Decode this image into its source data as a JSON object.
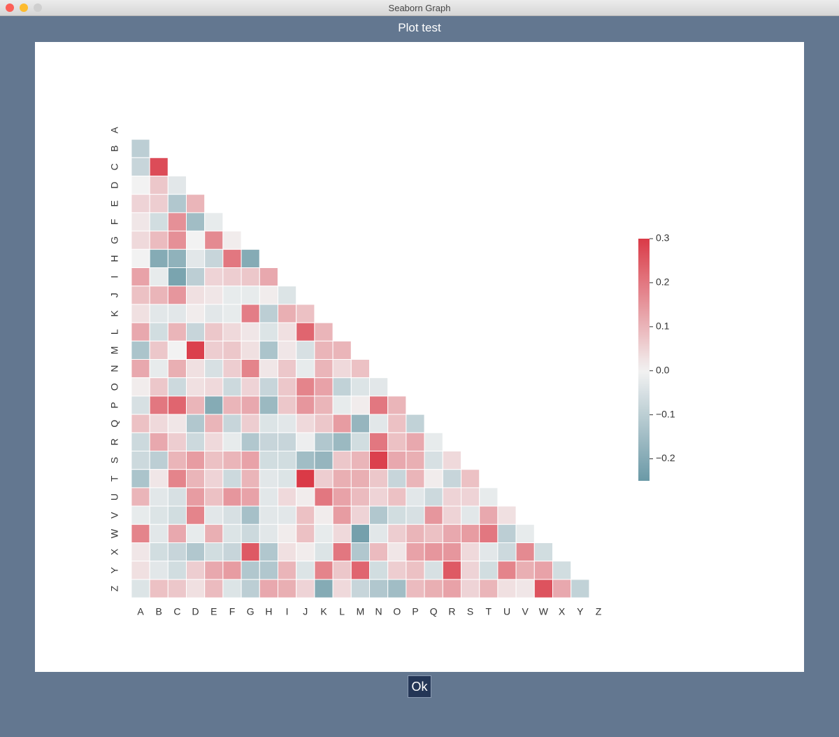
{
  "window": {
    "title": "Seaborn Graph"
  },
  "header": {
    "title": "Plot test"
  },
  "button": {
    "label": "Ok"
  },
  "chart_data": {
    "type": "heatmap",
    "categories": [
      "A",
      "B",
      "C",
      "D",
      "E",
      "F",
      "G",
      "H",
      "I",
      "J",
      "K",
      "L",
      "M",
      "N",
      "O",
      "P",
      "Q",
      "R",
      "S",
      "T",
      "U",
      "V",
      "W",
      "X",
      "Y",
      "Z"
    ],
    "values": [
      [
        null,
        null,
        null,
        null,
        null,
        null,
        null,
        null,
        null,
        null,
        null,
        null,
        null,
        null,
        null,
        null,
        null,
        null,
        null,
        null,
        null,
        null,
        null,
        null,
        null,
        null
      ],
      [
        -0.1,
        null,
        null,
        null,
        null,
        null,
        null,
        null,
        null,
        null,
        null,
        null,
        null,
        null,
        null,
        null,
        null,
        null,
        null,
        null,
        null,
        null,
        null,
        null,
        null,
        null
      ],
      [
        -0.08,
        0.27,
        null,
        null,
        null,
        null,
        null,
        null,
        null,
        null,
        null,
        null,
        null,
        null,
        null,
        null,
        null,
        null,
        null,
        null,
        null,
        null,
        null,
        null,
        null,
        null
      ],
      [
        0.0,
        0.07,
        -0.03,
        null,
        null,
        null,
        null,
        null,
        null,
        null,
        null,
        null,
        null,
        null,
        null,
        null,
        null,
        null,
        null,
        null,
        null,
        null,
        null,
        null,
        null,
        null
      ],
      [
        0.05,
        0.06,
        -0.12,
        0.1,
        null,
        null,
        null,
        null,
        null,
        null,
        null,
        null,
        null,
        null,
        null,
        null,
        null,
        null,
        null,
        null,
        null,
        null,
        null,
        null,
        null,
        null
      ],
      [
        0.02,
        -0.06,
        0.16,
        -0.15,
        -0.02,
        null,
        null,
        null,
        null,
        null,
        null,
        null,
        null,
        null,
        null,
        null,
        null,
        null,
        null,
        null,
        null,
        null,
        null,
        null,
        null,
        null
      ],
      [
        0.04,
        0.09,
        0.16,
        0.0,
        0.17,
        0.01,
        null,
        null,
        null,
        null,
        null,
        null,
        null,
        null,
        null,
        null,
        null,
        null,
        null,
        null,
        null,
        null,
        null,
        null,
        null,
        null
      ],
      [
        0.0,
        -0.2,
        -0.18,
        -0.03,
        -0.08,
        0.2,
        -0.2,
        null,
        null,
        null,
        null,
        null,
        null,
        null,
        null,
        null,
        null,
        null,
        null,
        null,
        null,
        null,
        null,
        null,
        null,
        null
      ],
      [
        0.13,
        -0.02,
        -0.22,
        -0.1,
        0.05,
        0.06,
        0.07,
        0.12,
        null,
        null,
        null,
        null,
        null,
        null,
        null,
        null,
        null,
        null,
        null,
        null,
        null,
        null,
        null,
        null,
        null,
        null
      ],
      [
        0.08,
        0.1,
        0.15,
        0.03,
        0.02,
        -0.02,
        -0.02,
        0.01,
        -0.04,
        null,
        null,
        null,
        null,
        null,
        null,
        null,
        null,
        null,
        null,
        null,
        null,
        null,
        null,
        null,
        null,
        null
      ],
      [
        0.03,
        -0.03,
        -0.03,
        0.01,
        -0.03,
        -0.02,
        0.19,
        -0.1,
        0.11,
        0.08,
        null,
        null,
        null,
        null,
        null,
        null,
        null,
        null,
        null,
        null,
        null,
        null,
        null,
        null,
        null,
        null
      ],
      [
        0.12,
        -0.06,
        0.1,
        -0.08,
        0.07,
        0.04,
        0.02,
        -0.04,
        0.03,
        0.23,
        0.1,
        null,
        null,
        null,
        null,
        null,
        null,
        null,
        null,
        null,
        null,
        null,
        null,
        null,
        null,
        null
      ],
      [
        -0.13,
        0.07,
        0.0,
        0.29,
        0.06,
        0.07,
        0.03,
        -0.13,
        0.02,
        -0.05,
        0.1,
        0.1,
        null,
        null,
        null,
        null,
        null,
        null,
        null,
        null,
        null,
        null,
        null,
        null,
        null,
        null
      ],
      [
        0.12,
        -0.02,
        0.11,
        0.03,
        -0.05,
        0.06,
        0.18,
        0.02,
        0.07,
        -0.02,
        0.1,
        0.04,
        0.08,
        null,
        null,
        null,
        null,
        null,
        null,
        null,
        null,
        null,
        null,
        null,
        null,
        null
      ],
      [
        0.01,
        0.07,
        -0.07,
        0.03,
        0.04,
        -0.07,
        0.05,
        -0.08,
        0.07,
        0.18,
        0.13,
        -0.09,
        -0.04,
        -0.03,
        null,
        null,
        null,
        null,
        null,
        null,
        null,
        null,
        null,
        null,
        null,
        null
      ],
      [
        -0.05,
        0.2,
        0.23,
        0.1,
        -0.2,
        0.1,
        0.12,
        -0.16,
        0.07,
        0.15,
        0.1,
        -0.02,
        0.01,
        0.2,
        0.1,
        null,
        null,
        null,
        null,
        null,
        null,
        null,
        null,
        null,
        null,
        null
      ],
      [
        0.08,
        0.04,
        0.02,
        -0.12,
        0.1,
        -0.08,
        0.06,
        -0.04,
        -0.03,
        0.04,
        0.07,
        0.14,
        -0.17,
        -0.03,
        0.08,
        -0.09,
        null,
        null,
        null,
        null,
        null,
        null,
        null,
        null,
        null,
        null
      ],
      [
        -0.07,
        0.12,
        0.06,
        -0.07,
        0.04,
        -0.02,
        -0.12,
        -0.08,
        -0.08,
        -0.01,
        -0.12,
        -0.16,
        -0.06,
        0.2,
        0.08,
        0.12,
        -0.02,
        null,
        null,
        null,
        null,
        null,
        null,
        null,
        null,
        null
      ],
      [
        -0.07,
        -0.1,
        0.1,
        0.14,
        0.08,
        0.1,
        0.13,
        -0.06,
        -0.06,
        -0.15,
        -0.17,
        0.07,
        0.1,
        0.29,
        0.12,
        0.11,
        -0.05,
        0.04,
        null,
        null,
        null,
        null,
        null,
        null,
        null,
        null
      ],
      [
        -0.13,
        0.02,
        0.18,
        0.1,
        0.05,
        -0.07,
        0.1,
        -0.03,
        -0.04,
        0.3,
        0.06,
        0.11,
        0.11,
        0.07,
        -0.08,
        0.1,
        0.01,
        -0.08,
        0.08,
        null,
        null,
        null,
        null,
        null,
        null,
        null
      ],
      [
        0.1,
        -0.03,
        -0.05,
        0.14,
        0.08,
        0.15,
        0.13,
        -0.03,
        0.04,
        0.01,
        0.2,
        0.13,
        0.09,
        0.05,
        0.08,
        -0.03,
        -0.07,
        0.05,
        0.05,
        -0.02,
        null,
        null,
        null,
        null,
        null,
        null
      ],
      [
        -0.02,
        -0.04,
        -0.06,
        0.18,
        -0.03,
        -0.05,
        -0.14,
        -0.03,
        -0.03,
        0.08,
        0.01,
        0.14,
        0.05,
        -0.12,
        -0.06,
        -0.05,
        0.15,
        0.05,
        -0.03,
        0.12,
        0.03,
        null,
        null,
        null,
        null,
        null
      ],
      [
        0.18,
        -0.03,
        0.12,
        -0.02,
        0.11,
        -0.04,
        -0.07,
        -0.03,
        0.01,
        0.08,
        -0.02,
        0.04,
        -0.23,
        -0.03,
        0.06,
        0.1,
        0.08,
        0.12,
        0.14,
        0.2,
        -0.1,
        -0.02,
        null,
        null,
        null,
        null
      ],
      [
        0.02,
        -0.06,
        -0.08,
        -0.12,
        -0.06,
        -0.08,
        0.25,
        -0.12,
        0.03,
        0.01,
        -0.04,
        0.2,
        -0.12,
        0.09,
        0.02,
        0.13,
        0.15,
        0.15,
        0.04,
        -0.03,
        -0.07,
        0.17,
        -0.06,
        null,
        null,
        null
      ],
      [
        0.03,
        -0.03,
        -0.06,
        0.06,
        0.12,
        0.14,
        -0.12,
        -0.12,
        0.1,
        -0.04,
        0.18,
        0.07,
        0.23,
        -0.06,
        0.06,
        0.08,
        -0.05,
        0.25,
        0.05,
        -0.06,
        0.18,
        0.11,
        0.13,
        -0.06,
        null,
        null
      ],
      [
        -0.04,
        0.08,
        0.07,
        0.03,
        0.09,
        -0.04,
        -0.1,
        0.12,
        0.11,
        0.05,
        -0.2,
        0.04,
        -0.08,
        -0.12,
        -0.15,
        0.09,
        0.11,
        0.13,
        0.05,
        0.1,
        0.03,
        0.02,
        0.26,
        0.12,
        -0.09,
        null
      ]
    ],
    "vmin": -0.25,
    "vmax": 0.3,
    "center": 0,
    "colors": {
      "low": "#4f8797",
      "mid": "#f2f2f2",
      "high": "#da3a47"
    },
    "cticks": [
      {
        "value": -0.2,
        "label": "−0.2"
      },
      {
        "value": -0.1,
        "label": "−0.1"
      },
      {
        "value": 0,
        "label": "0.0"
      },
      0.1,
      0.2,
      0.3
    ]
  }
}
